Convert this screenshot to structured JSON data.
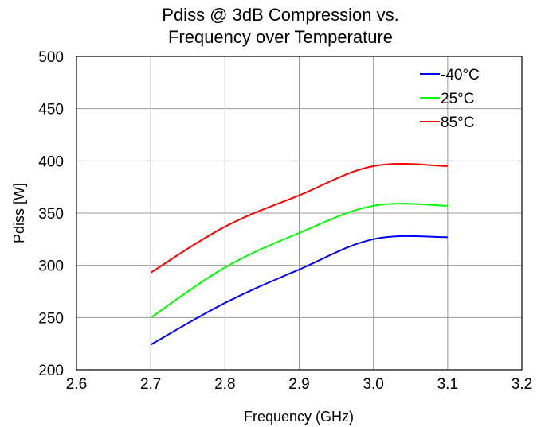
{
  "chart_data": {
    "type": "line",
    "title": [
      "Pdiss @ 3dB Compression vs.",
      "Frequency over Temperature"
    ],
    "xlabel": "Frequency (GHz)",
    "ylabel": "Pdiss [W]",
    "xlim": [
      2.6,
      3.2
    ],
    "ylim": [
      200,
      500
    ],
    "xticks": [
      "2.6",
      "2.7",
      "2.8",
      "2.9",
      "3.0",
      "3.1",
      "3.2"
    ],
    "yticks": [
      "200",
      "250",
      "300",
      "350",
      "400",
      "450",
      "500"
    ],
    "grid": true,
    "legend_position": "top-right",
    "x": [
      2.7,
      2.8,
      2.9,
      3.0,
      3.1
    ],
    "series": [
      {
        "name": "-40°C",
        "color": "#0000ff",
        "values": [
          224,
          264,
          296,
          325,
          327
        ]
      },
      {
        "name": "25°C",
        "color": "#00ff00",
        "values": [
          250,
          298,
          331,
          357,
          357
        ]
      },
      {
        "name": "85°C",
        "color": "#ff0000",
        "values": [
          293,
          337,
          367,
          395,
          395
        ]
      }
    ]
  }
}
